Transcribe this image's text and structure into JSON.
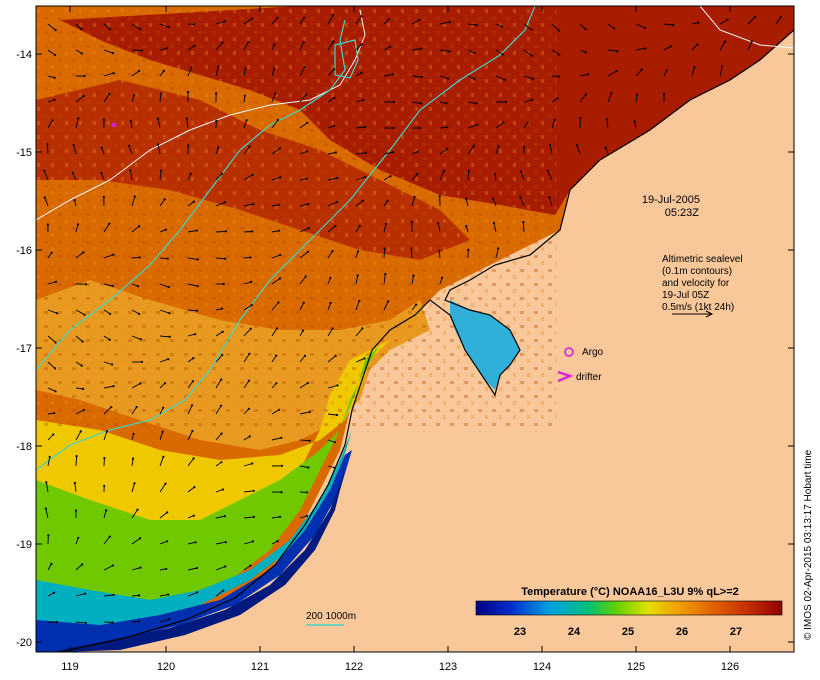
{
  "map": {
    "date": "19-Jul-2005",
    "time": "05:23Z",
    "legend_lines": [
      "Altimetric sealevel",
      "(0.1m contours)",
      "and velocity for",
      "19-Jul 05Z",
      "0.5m/s (1kt 24h)"
    ],
    "argo_label": "Argo",
    "drifter_label": "drifter",
    "depth_label": "200  1000m",
    "lat_ticks": [
      "-14",
      "-15",
      "-16",
      "-17",
      "-18",
      "-19",
      "-20"
    ],
    "lon_ticks": [
      "119",
      "120",
      "121",
      "122",
      "123",
      "124",
      "125",
      "126"
    ],
    "credit": "© IMOS 02-Apr-2015 03:13:17 Hobart time"
  },
  "colorbar": {
    "title": "Temperature (°C) NOAA16_L3U 9% qL>=2",
    "ticks": [
      "23",
      "24",
      "25",
      "26",
      "27"
    ]
  },
  "colors": {
    "land": "#f9c89a",
    "sst_hot": "#a01a00",
    "sst_warm": "#d25a00",
    "sst_mid": "#e08a10",
    "sst_cool": "#8ad000",
    "sst_cold": "#00a0c8",
    "sst_cold2": "#0020a0",
    "contour": "#e8f4ff",
    "isobath": "#40d0c0",
    "argo": "#d020d0"
  }
}
